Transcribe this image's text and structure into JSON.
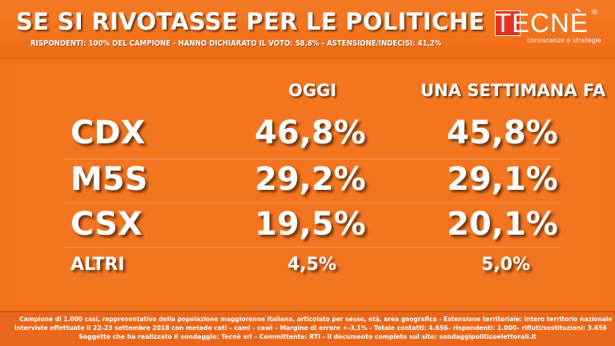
{
  "header": {
    "title": "SE SI RIVOTASSE PER LE POLITICHE",
    "subtitle": "RISPONDENTI: 100% DEL CAMPIONE - HANNO DICHIARATO IL VOTO: 58,8% - ASTENSIONE/INDECISI: 41,2%"
  },
  "logo": {
    "text": "TECNÈ",
    "registered": "®",
    "tagline": "conoscenze e strategie"
  },
  "table": {
    "col_today": "OGGI",
    "col_week_ago": "UNA SETTIMANA FA",
    "rows": [
      {
        "label": "CDX",
        "today": "46,8%",
        "week_ago": "45,8%"
      },
      {
        "label": "M5S",
        "today": "29,2%",
        "week_ago": "29,1%"
      },
      {
        "label": "CSX",
        "today": "19,5%",
        "week_ago": "20,1%"
      },
      {
        "label": "ALTRI",
        "today": "4,5%",
        "week_ago": "5,0%"
      }
    ]
  },
  "footer": {
    "line1": "Campione di 1.000 casi, rappresentativo della popolazione maggiorenne italiana, articolato per sesso, età, area geografica - Estensione territoriale: intero territorio nazionale",
    "line2": "Interviste effettuate il 22-23 settembre 2018 con metodo cati – cami - cawi – Margine di errore +-3,1% - Totale contatti: 4.656– rispondenti: 1.000– rifiuti/sostituzioni: 3.656",
    "line3": "Soggetto che ha realizzato il sondaggio: Tecnè srl – Committente: RTI - Il documento completo sul sito: sondaggipoliticoelettorali.it"
  },
  "colors": {
    "background": "#f2721c",
    "logo_red": "#e8301f",
    "text": "#ffffff"
  }
}
